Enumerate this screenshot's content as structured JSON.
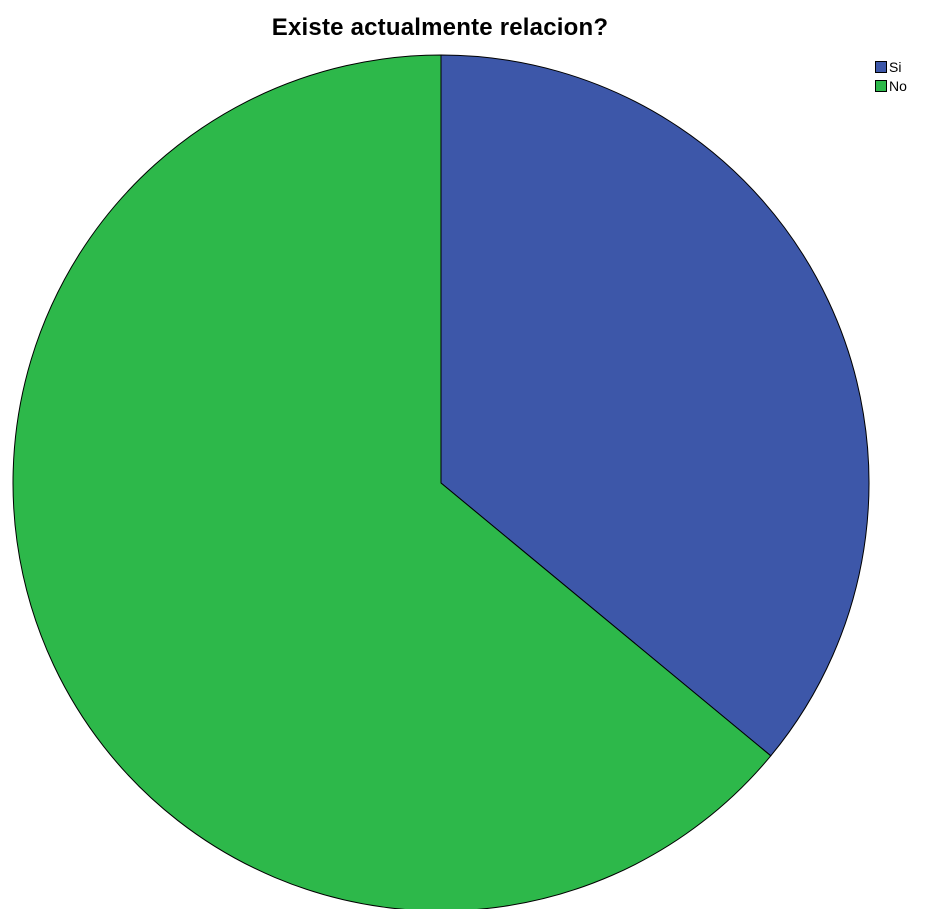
{
  "chart_data": {
    "type": "pie",
    "title": "Existe actualmente relacion?",
    "categories": [
      "Si",
      "No"
    ],
    "values": [
      36,
      64
    ],
    "colors": [
      "#3d57a9",
      "#2db84a"
    ],
    "start_angle_deg": 0,
    "direction": "clockwise",
    "legend_position": "top-right"
  }
}
